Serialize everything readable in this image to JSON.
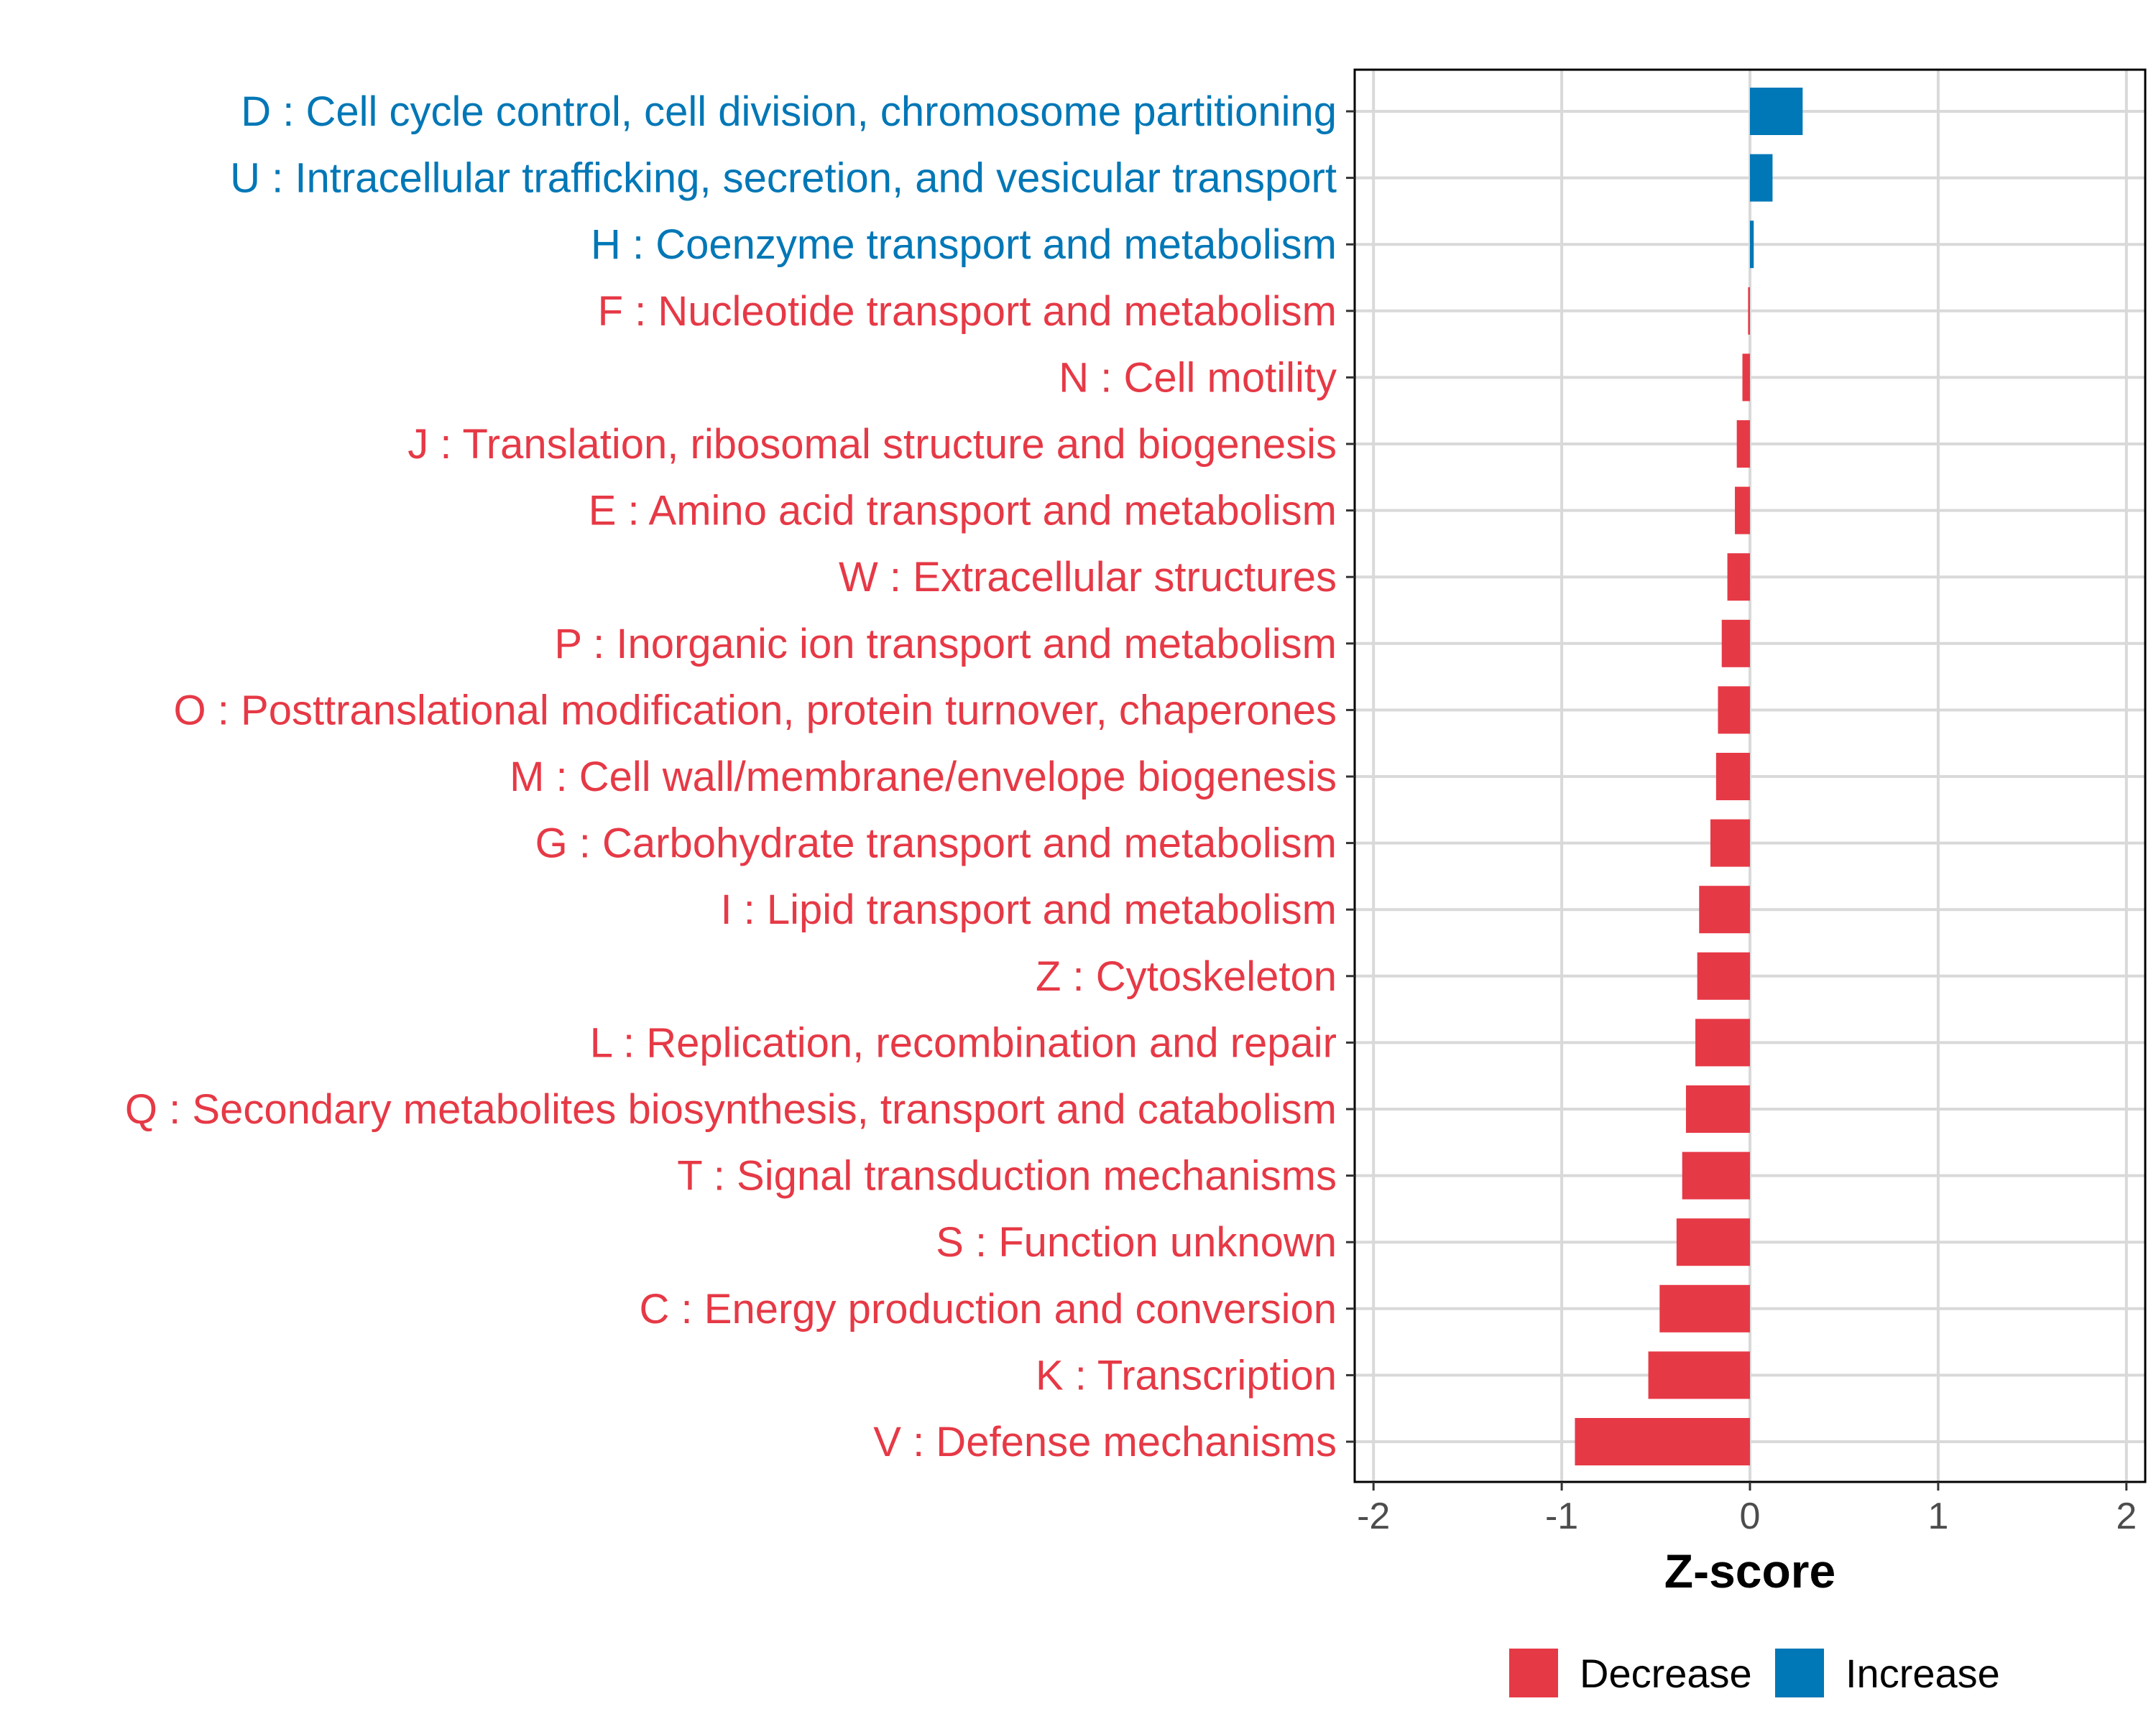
{
  "chart_data": {
    "type": "bar",
    "orientation": "horizontal",
    "title": "",
    "xlabel": "Z-score",
    "ylabel": "",
    "xlim": [
      -2.1,
      2.1
    ],
    "xticks": [
      -2,
      -1,
      0,
      1,
      2
    ],
    "grid": true,
    "legend_position": "bottom",
    "colors": {
      "Decrease": "#E63946",
      "Increase": "#0077B6"
    },
    "legend": [
      {
        "label": "Decrease",
        "color": "#E63946"
      },
      {
        "label": "Increase",
        "color": "#0077B6"
      }
    ],
    "categories": [
      "D : Cell cycle control, cell division, chromosome partitioning",
      "U : Intracellular trafficking, secretion, and vesicular transport",
      "H : Coenzyme transport and metabolism",
      "F : Nucleotide transport and metabolism",
      "N : Cell motility",
      "J : Translation, ribosomal structure and biogenesis",
      "E : Amino acid transport and metabolism",
      "W : Extracellular structures",
      "P : Inorganic ion transport and metabolism",
      "O : Posttranslational modification, protein turnover, chaperones",
      "M : Cell wall/membrane/envelope biogenesis",
      "G : Carbohydrate transport and metabolism",
      "I : Lipid transport and metabolism",
      "Z : Cytoskeleton",
      "L : Replication, recombination and repair",
      "Q : Secondary metabolites biosynthesis, transport and catabolism",
      "T : Signal transduction mechanisms",
      "S : Function unknown",
      "C : Energy production and conversion",
      "K : Transcription",
      "V : Defense mechanisms"
    ],
    "values": [
      0.28,
      0.12,
      0.02,
      -0.01,
      -0.04,
      -0.07,
      -0.08,
      -0.12,
      -0.15,
      -0.17,
      -0.18,
      -0.21,
      -0.27,
      -0.28,
      -0.29,
      -0.34,
      -0.36,
      -0.39,
      -0.48,
      -0.54,
      -0.93
    ],
    "groups": [
      "Increase",
      "Increase",
      "Increase",
      "Decrease",
      "Decrease",
      "Decrease",
      "Decrease",
      "Decrease",
      "Decrease",
      "Decrease",
      "Decrease",
      "Decrease",
      "Decrease",
      "Decrease",
      "Decrease",
      "Decrease",
      "Decrease",
      "Decrease",
      "Decrease",
      "Decrease",
      "Decrease"
    ]
  }
}
